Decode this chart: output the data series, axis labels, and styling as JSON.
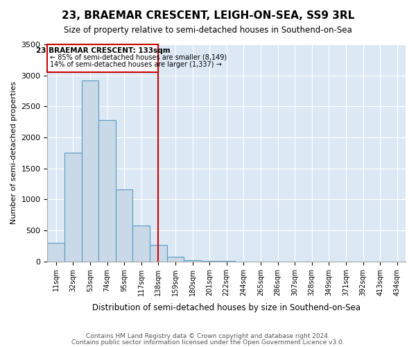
{
  "title": "23, BRAEMAR CRESCENT, LEIGH-ON-SEA, SS9 3RL",
  "subtitle": "Size of property relative to semi-detached houses in Southend-on-Sea",
  "xlabel": "Distribution of semi-detached houses by size in Southend-on-Sea",
  "ylabel": "Number of semi-detached properties",
  "footer1": "Contains HM Land Registry data © Crown copyright and database right 2024.",
  "footer2": "Contains public sector information licensed under the Open Government Licence v3.0.",
  "bin_labels": [
    "11sqm",
    "32sqm",
    "53sqm",
    "74sqm",
    "95sqm",
    "117sqm",
    "138sqm",
    "159sqm",
    "180sqm",
    "201sqm",
    "222sqm",
    "244sqm",
    "265sqm",
    "286sqm",
    "307sqm",
    "328sqm",
    "349sqm",
    "371sqm",
    "392sqm",
    "413sqm",
    "434sqm"
  ],
  "bar_values": [
    300,
    1750,
    2920,
    2280,
    1160,
    580,
    270,
    80,
    20,
    5,
    2,
    1,
    0,
    0,
    0,
    0,
    0,
    0,
    0,
    0,
    0
  ],
  "marker_bin_index": 6,
  "marker_label": "23 BRAEMAR CRESCENT: 133sqm",
  "annotation_line1": "← 85% of semi-detached houses are smaller (8,149)",
  "annotation_line2": "14% of semi-detached houses are larger (1,337) →",
  "bar_color": "#c9d9e8",
  "bar_edge_color": "#5a9abf",
  "marker_color": "#cc0000",
  "background_color": "#dce9f5",
  "ylim": [
    0,
    3500
  ],
  "yticks": [
    0,
    500,
    1000,
    1500,
    2000,
    2500,
    3000,
    3500
  ]
}
